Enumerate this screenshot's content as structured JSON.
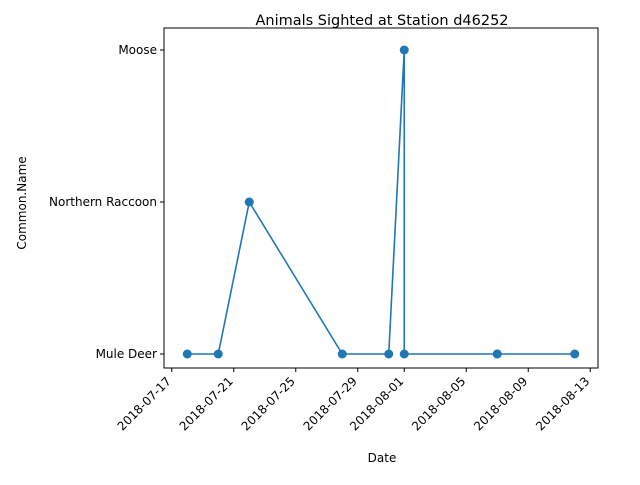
{
  "chart_data": {
    "type": "line",
    "title": "Animals Sighted at Station d46252",
    "xlabel": "Date",
    "ylabel": "Common.Name",
    "x_tick_labels": [
      "2018-07-17",
      "2018-07-21",
      "2018-07-25",
      "2018-07-29",
      "2018-08-01",
      "2018-08-05",
      "2018-08-09",
      "2018-08-13"
    ],
    "y_categories": [
      "Mule Deer",
      "Northern Raccoon",
      "Moose"
    ],
    "xlim": [
      "2018-07-16T12:00",
      "2018-08-13T12:00"
    ],
    "grid": false,
    "series": [
      {
        "color": "#1f77b4",
        "marker": "circle",
        "points": [
          {
            "x": "2018-07-18",
            "y": "Mule Deer"
          },
          {
            "x": "2018-07-20",
            "y": "Mule Deer"
          },
          {
            "x": "2018-07-22",
            "y": "Northern Raccoon"
          },
          {
            "x": "2018-07-28",
            "y": "Mule Deer"
          },
          {
            "x": "2018-07-31",
            "y": "Mule Deer"
          },
          {
            "x": "2018-08-01",
            "y": "Moose"
          },
          {
            "x": "2018-08-01",
            "y": "Mule Deer"
          },
          {
            "x": "2018-08-07",
            "y": "Mule Deer"
          },
          {
            "x": "2018-08-07",
            "y": "Mule Deer"
          },
          {
            "x": "2018-08-12",
            "y": "Mule Deer"
          }
        ]
      }
    ]
  }
}
